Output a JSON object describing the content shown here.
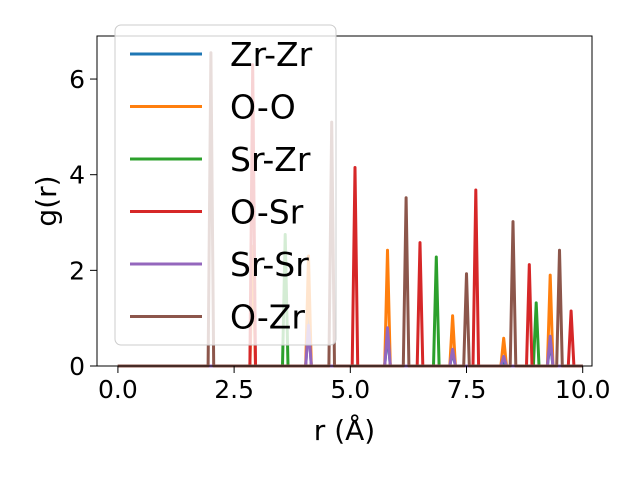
{
  "chart_data": {
    "type": "line",
    "title": "",
    "xlabel": "r (Å)",
    "ylabel": "g(r)",
    "xlim": [
      -0.45,
      10.2
    ],
    "ylim": [
      0,
      6.9
    ],
    "xticks": [
      0.0,
      2.5,
      5.0,
      7.5,
      10.0
    ],
    "xtick_labels": [
      "0.0",
      "2.5",
      "5.0",
      "7.5",
      "10.0"
    ],
    "yticks": [
      0,
      2,
      4,
      6
    ],
    "ytick_labels": [
      "0",
      "2",
      "4",
      "6"
    ],
    "grid": false,
    "legend_position": "top-left",
    "x_range": [
      0.0,
      10.0
    ],
    "series": [
      {
        "name": "Zr-Zr",
        "color": "#1f77b4",
        "peaks": [
          [
            4.1,
            1.0
          ],
          [
            5.8,
            0.7
          ],
          [
            7.2,
            0.3
          ],
          [
            8.3,
            0.1
          ],
          [
            9.3,
            0.5
          ]
        ]
      },
      {
        "name": "O-O",
        "color": "#ff7f0e",
        "peaks": [
          [
            2.9,
            2.5
          ],
          [
            4.1,
            2.3
          ],
          [
            5.8,
            2.42
          ],
          [
            7.2,
            1.05
          ],
          [
            8.3,
            0.58
          ],
          [
            9.3,
            1.9
          ]
        ]
      },
      {
        "name": "Sr-Zr",
        "color": "#2ca02c",
        "peaks": [
          [
            3.6,
            2.75
          ],
          [
            6.85,
            2.28
          ],
          [
            9.0,
            1.32
          ]
        ]
      },
      {
        "name": "O-Sr",
        "color": "#d62728",
        "peaks": [
          [
            2.9,
            6.3
          ],
          [
            5.1,
            4.15
          ],
          [
            6.5,
            2.58
          ],
          [
            7.7,
            3.68
          ],
          [
            8.85,
            2.12
          ],
          [
            9.75,
            1.15
          ]
        ]
      },
      {
        "name": "Sr-Sr",
        "color": "#9467bd",
        "peaks": [
          [
            4.1,
            0.85
          ],
          [
            5.8,
            0.8
          ],
          [
            7.2,
            0.35
          ],
          [
            8.3,
            0.2
          ],
          [
            9.3,
            0.62
          ]
        ]
      },
      {
        "name": "O-Zr",
        "color": "#8c564b",
        "peaks": [
          [
            2.0,
            6.55
          ],
          [
            4.6,
            5.1
          ],
          [
            6.2,
            3.52
          ],
          [
            7.5,
            1.93
          ],
          [
            8.5,
            3.02
          ],
          [
            9.5,
            2.42
          ]
        ]
      }
    ]
  }
}
